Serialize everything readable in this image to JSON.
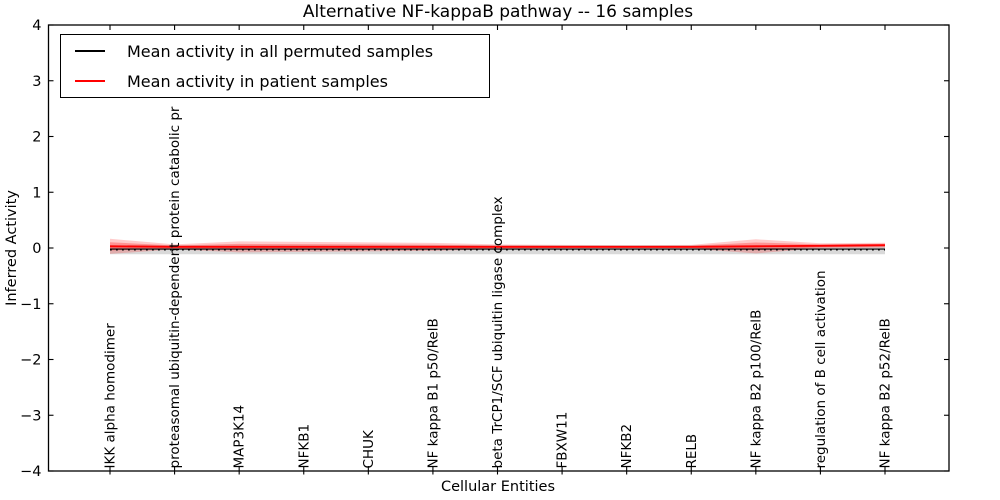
{
  "title": "Alternative NF-kappaB pathway -- 16 samples",
  "axes": {
    "ylabel": "Inferred Activity",
    "xlabel": "Cellular Entities"
  },
  "legend": {
    "items": [
      {
        "label": "Mean activity in all permuted samples",
        "color": "#000000"
      },
      {
        "label": "Mean activity in patient samples",
        "color": "#ff0000"
      }
    ]
  },
  "chart_data": {
    "type": "line",
    "title": "Alternative NF-kappaB pathway -- 16 samples",
    "xlabel": "Cellular Entities",
    "ylabel": "Inferred Activity",
    "ylim": [
      -4,
      4
    ],
    "yticks": {
      "values": [
        4,
        3,
        2,
        1,
        0,
        -1,
        -2,
        -3,
        -4
      ],
      "labels": [
        "4",
        "3",
        "2",
        "1",
        "0",
        "−1",
        "−2",
        "−3",
        "−4"
      ]
    },
    "grid": false,
    "legend_position": "upper left",
    "categories": [
      "IKK alpha homodimer",
      "proteasomal ubiquitin-dependent protein catabolic pr",
      "MAP3K14",
      "NFKB1",
      "CHUK",
      "NF kappa B1 p50/RelB",
      "beta TrCP1/SCF ubiquitin ligase complex",
      "FBXW11",
      "NFKB2",
      "RELB",
      "NF kappa B2 p100/RelB",
      "regulation of B cell activation",
      "NF kappa B2 p52/RelB"
    ],
    "series": [
      {
        "name": "Mean activity in all permuted samples",
        "color": "#000000",
        "width": 1.1,
        "style": "solid",
        "values": [
          -0.02,
          -0.02,
          -0.02,
          -0.02,
          -0.02,
          -0.02,
          -0.02,
          -0.02,
          -0.02,
          -0.02,
          -0.02,
          -0.02,
          -0.02
        ]
      },
      {
        "name": "Mean activity in patient samples",
        "color": "#ff0000",
        "width": 1.8,
        "style": "solid",
        "values": [
          0.03,
          0.02,
          0.02,
          0.02,
          0.02,
          0.02,
          0.02,
          0.02,
          0.02,
          0.02,
          0.03,
          0.04,
          0.05
        ]
      }
    ],
    "bands": [
      {
        "name": "permuted-std-band",
        "color": "rgba(0,0,0,0.15)",
        "center": -0.03,
        "half_widths": 0.082
      },
      {
        "name": "patient-std-outer-band",
        "color": "rgba(255,0,0,0.20)",
        "center": 1,
        "half_widths": [
          0.135,
          0.045,
          0.099,
          0.09,
          0.081,
          0.072,
          0.045,
          0.036,
          0.032,
          0.036,
          0.126,
          0.045,
          0.045
        ]
      },
      {
        "name": "patient-std-inner-band",
        "color": "rgba(255,0,0,0.28)",
        "center": 1,
        "half_widths": [
          0.074,
          0.025,
          0.054,
          0.05,
          0.045,
          0.04,
          0.025,
          0.02,
          0.018,
          0.02,
          0.069,
          0.025,
          0.025
        ]
      }
    ],
    "zero_line": {
      "value": -0.032,
      "color": "#000000",
      "style": "dotted"
    }
  }
}
